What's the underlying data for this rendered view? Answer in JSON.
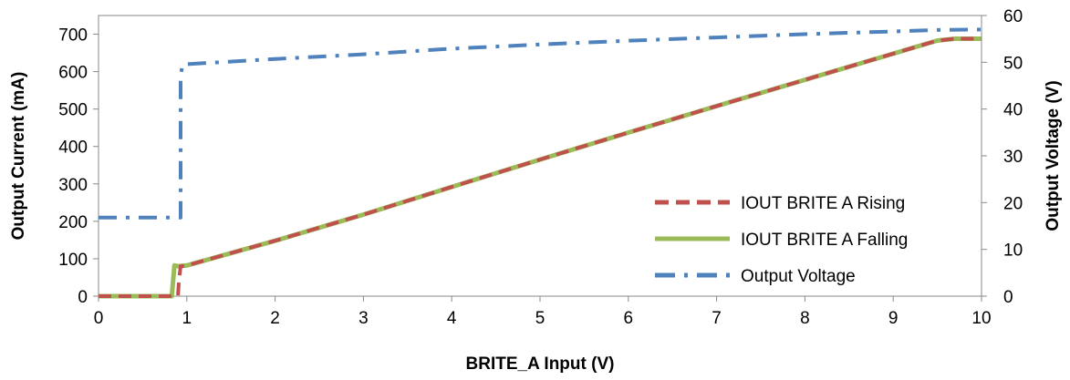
{
  "chart_data": {
    "type": "line",
    "xlabel": "BRITE_A Input (V)",
    "ylabel": "Output Current (mA)",
    "y2label": "Output Voltage (V)",
    "xlim": [
      0,
      10
    ],
    "ylim": [
      0,
      750
    ],
    "y2lim": [
      0,
      60
    ],
    "x_ticks": [
      0,
      1,
      2,
      3,
      4,
      5,
      6,
      7,
      8,
      9,
      10
    ],
    "y_ticks": [
      0,
      100,
      200,
      300,
      400,
      500,
      600,
      700
    ],
    "y2_ticks": [
      0,
      10,
      20,
      30,
      40,
      50,
      60
    ],
    "grid": false,
    "legend_position": "right",
    "series": [
      {
        "name": "IOUT BRITE A  Rising",
        "axis": "left",
        "color": "#c0504d",
        "style": "dashed",
        "x": [
          0,
          0.5,
          0.9,
          0.91,
          0.93,
          0.95,
          1,
          2,
          3,
          4,
          5,
          6,
          7,
          8,
          9,
          9.5,
          9.7,
          10
        ],
        "y": [
          0,
          0,
          0,
          40,
          80,
          80,
          82,
          148,
          218,
          292,
          365,
          437,
          508,
          578,
          648,
          683,
          688,
          688
        ]
      },
      {
        "name": "IOUT BRITE A Falling",
        "axis": "left",
        "color": "#9bbb59",
        "style": "solid",
        "x": [
          0,
          0.5,
          0.83,
          0.86,
          0.9,
          1,
          2,
          3,
          4,
          5,
          6,
          7,
          8,
          9,
          9.5,
          9.7,
          10
        ],
        "y": [
          0,
          0,
          0,
          82,
          80,
          82,
          148,
          218,
          292,
          365,
          437,
          508,
          578,
          648,
          683,
          688,
          688
        ]
      },
      {
        "name": "Output Voltage",
        "axis": "right",
        "color": "#4f81bd",
        "style": "dash-dot",
        "x": [
          0,
          0.7,
          0.93,
          0.93,
          0.95,
          1,
          2,
          3,
          4,
          5,
          6,
          7,
          8,
          9,
          9.5,
          10
        ],
        "y": [
          16.8,
          16.8,
          16.8,
          47,
          49.5,
          49.6,
          50.7,
          51.7,
          52.9,
          53.8,
          54.6,
          55.3,
          56,
          56.6,
          56.9,
          57
        ]
      }
    ]
  }
}
